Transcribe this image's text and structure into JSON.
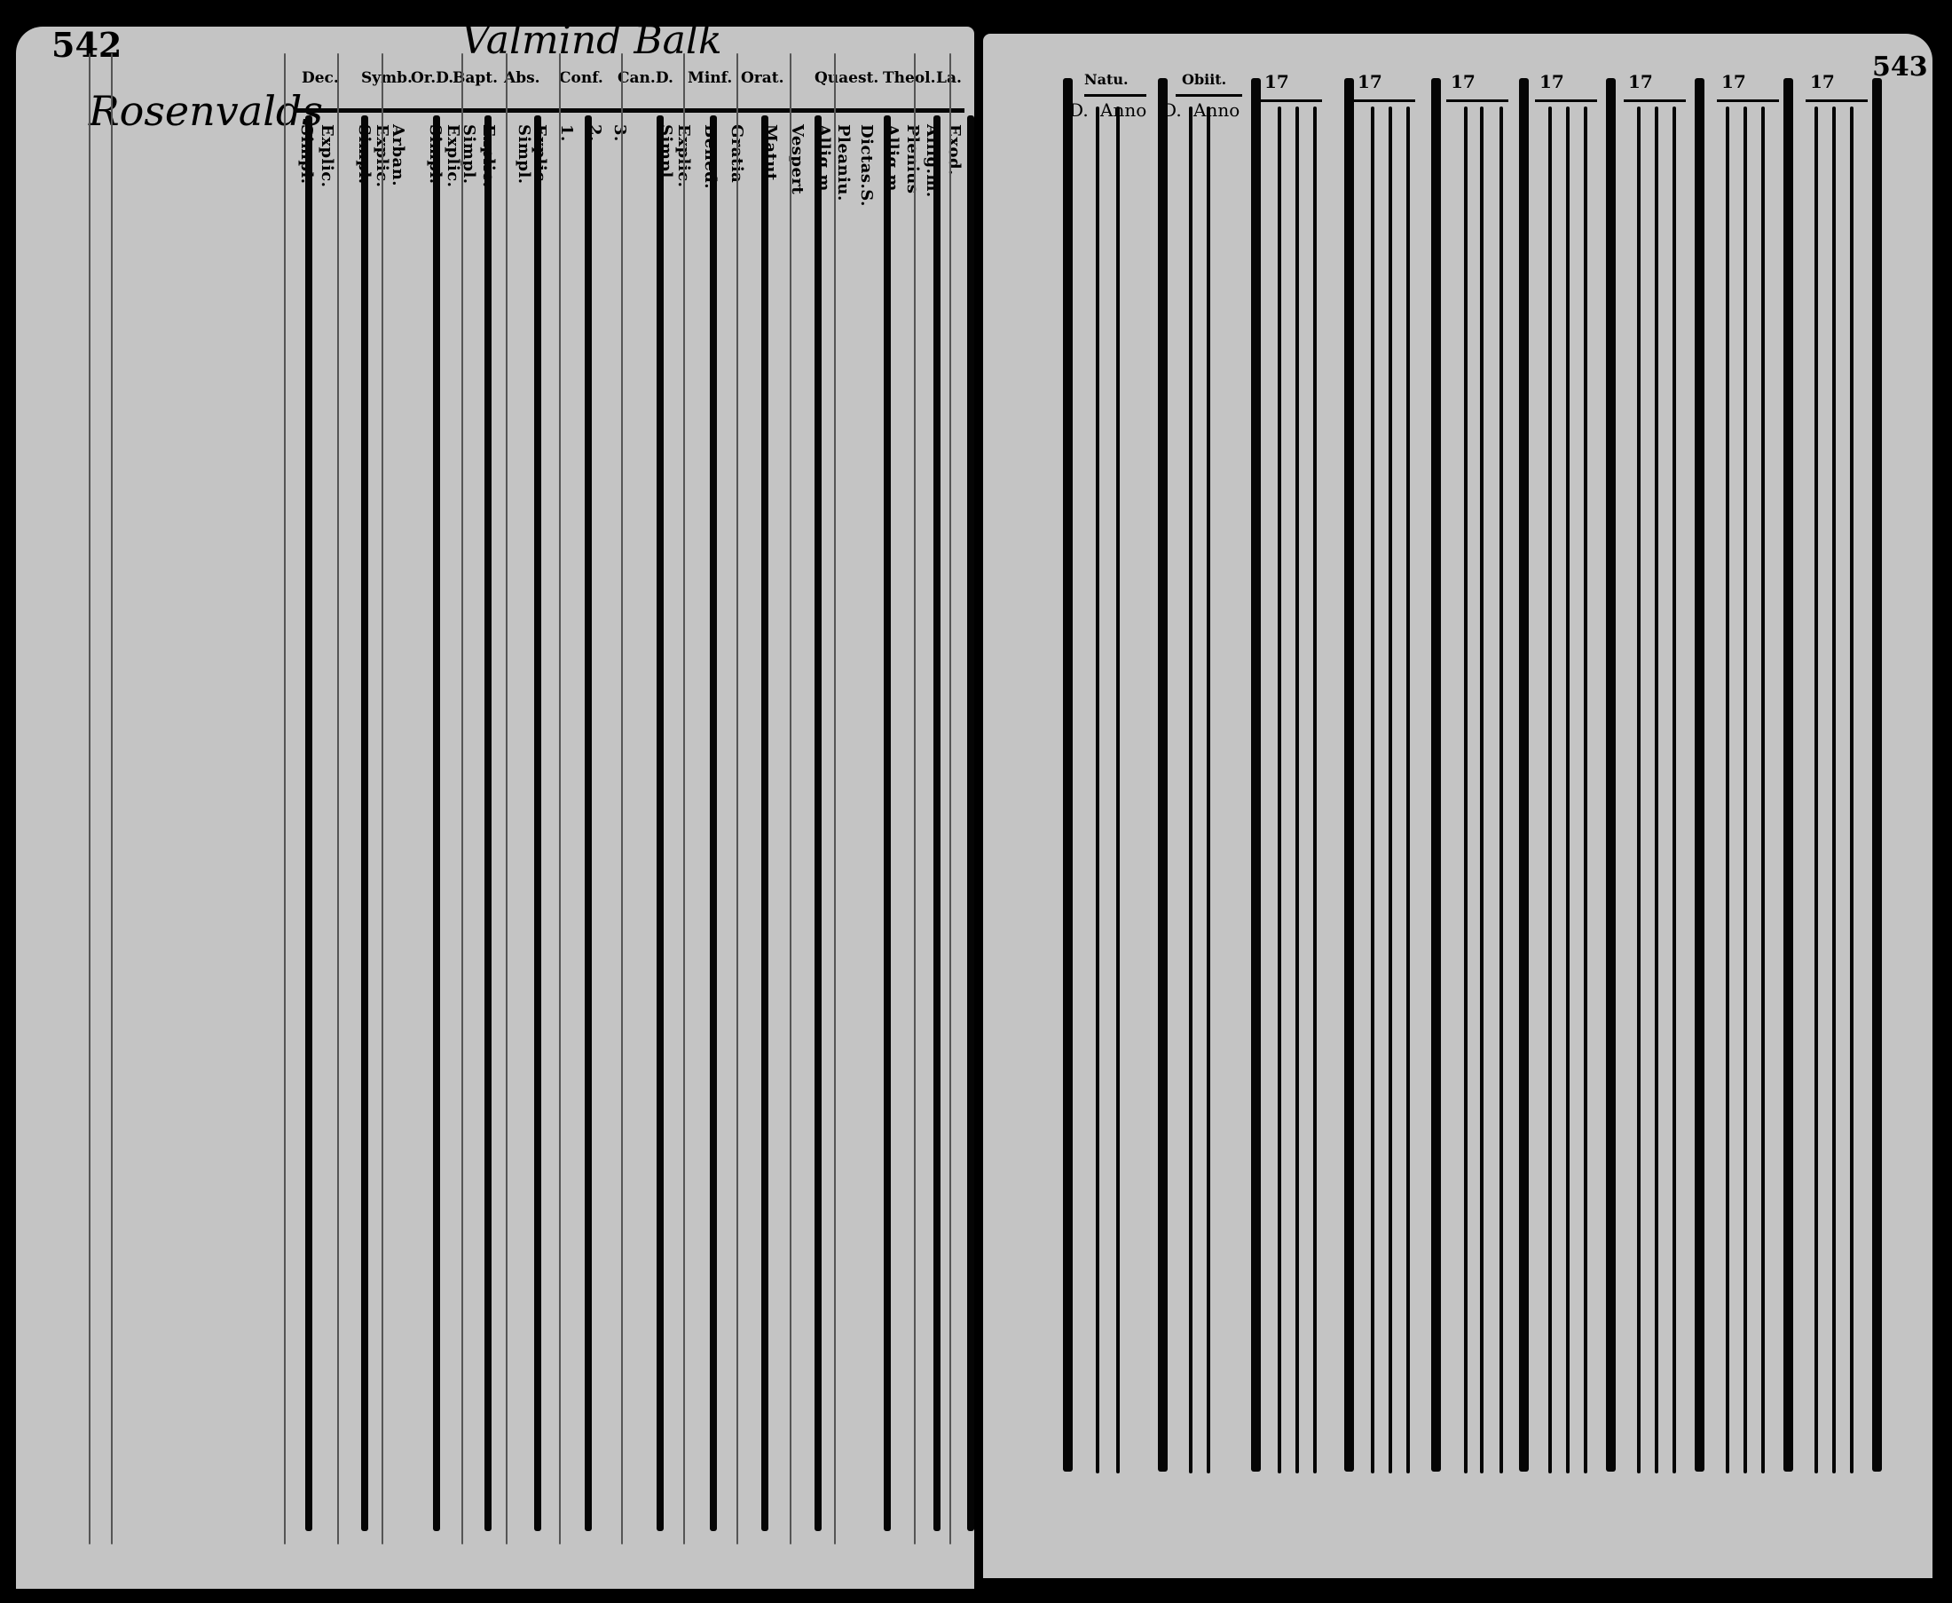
{
  "left_page": {
    "page_number": "542",
    "margin_name": "Rosenvalds",
    "header_handwriting": "Valmind Balk",
    "column_headers": [
      "Dec.",
      "Symb.",
      "Or.D.",
      "Bapt.",
      "Abs.",
      "Conf.",
      "Can.D.",
      "Minf.",
      "Orat.",
      "Quaest.",
      "Theol.",
      "La."
    ],
    "sub_headers": [
      "Simpl.",
      "Explic.",
      "Simpl.",
      "Explic.",
      "Arban.",
      "Simpl.",
      "Explic.",
      "Simpl.",
      "Explic.",
      "Simpl.",
      "Explic.",
      "1.",
      "2.",
      "3.",
      "Simpl.",
      "Explic.",
      "Bened.",
      "Gratia",
      "Matut.",
      "Vespert",
      "Allig.m.",
      "Pleaniu.",
      "Dictas.S.",
      "Allig.m.",
      "Plenius",
      "Allig.m.",
      "Exod."
    ]
  },
  "right_page": {
    "page_number": "543",
    "headers": [
      "Natu.",
      "Obiit."
    ],
    "sub_headers": [
      "D.",
      "Anno",
      "D.",
      "Anno"
    ],
    "year_columns": [
      "17",
      "17",
      "17",
      "17",
      "17",
      "17",
      "17"
    ]
  }
}
